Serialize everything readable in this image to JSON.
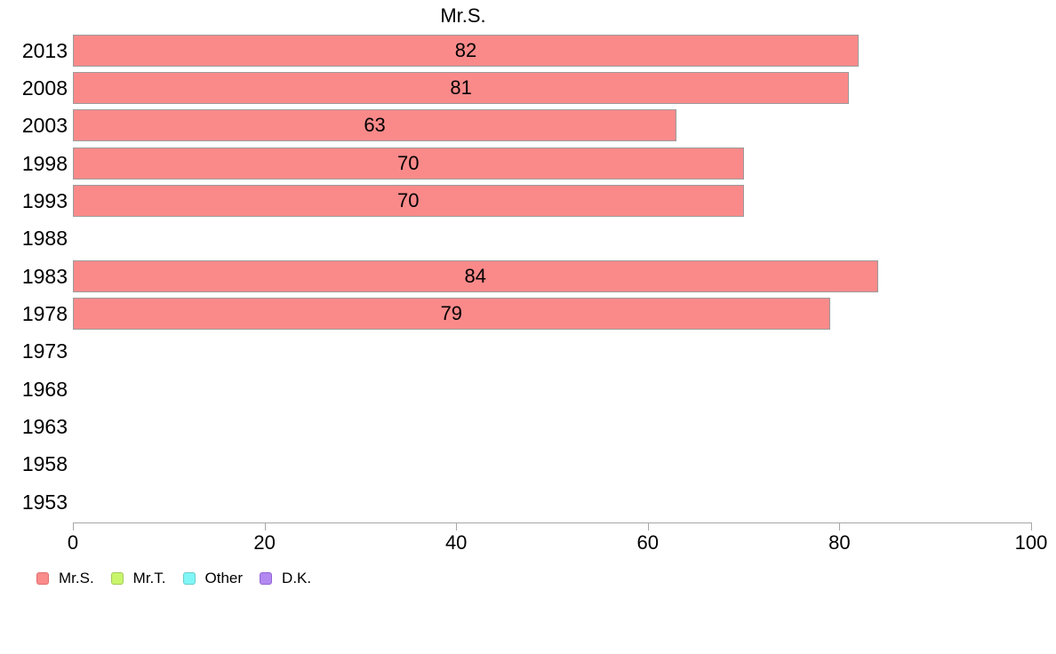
{
  "chart_data": {
    "type": "bar",
    "orientation": "horizontal",
    "title": "Mr.S.",
    "categories": [
      "2013",
      "2008",
      "2003",
      "1998",
      "1993",
      "1988",
      "1983",
      "1978",
      "1973",
      "1968",
      "1963",
      "1958",
      "1953"
    ],
    "series": [
      {
        "name": "Mr.S.",
        "values": [
          82,
          81,
          63,
          70,
          70,
          null,
          84,
          79,
          null,
          null,
          null,
          null,
          null
        ]
      }
    ],
    "xlim": [
      0,
      100
    ],
    "x_ticks": [
      0,
      20,
      40,
      60,
      80,
      100
    ],
    "x_tick_labels": [
      "0",
      "20",
      "40",
      "60",
      "80",
      "100"
    ],
    "grid": false,
    "bar_color": "#fa8a8a",
    "bar_border_color": "#9c9c9c",
    "axis_color": "#a6a6a6",
    "value_label_color": "#000000",
    "legend": {
      "position": "bottom-left",
      "items": [
        {
          "label": "Mr.S.",
          "color": "#f98b8b",
          "border": "#e06e6e"
        },
        {
          "label": "Mr.T.",
          "color": "#c8f56b",
          "border": "#a3c95a"
        },
        {
          "label": "Other",
          "color": "#80f6f6",
          "border": "#67cccc"
        },
        {
          "label": "D.K.",
          "color": "#b289f0",
          "border": "#9263d6"
        }
      ]
    }
  }
}
